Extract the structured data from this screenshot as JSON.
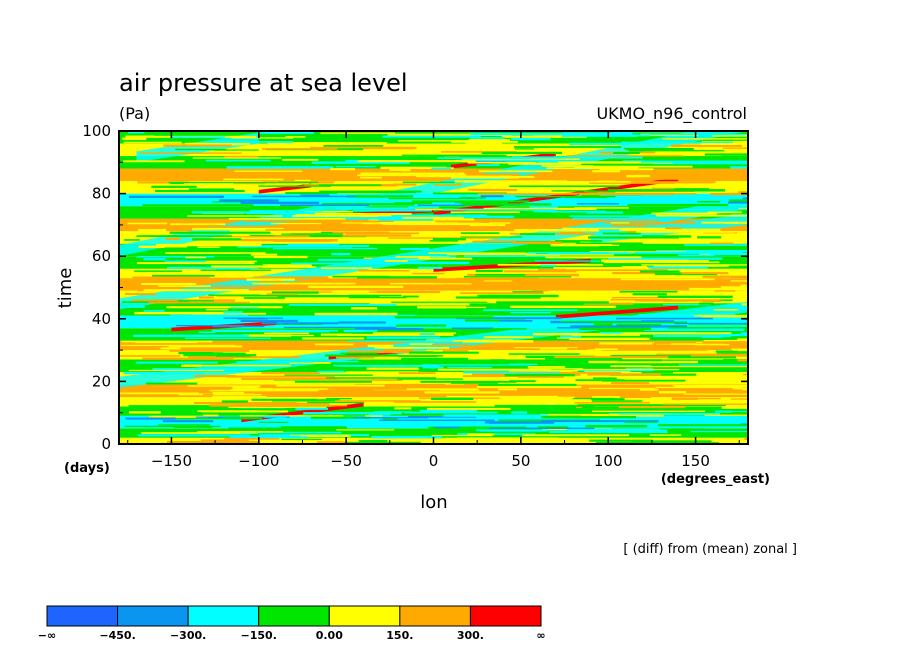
{
  "chart_data": {
    "type": "heatmap",
    "title": "air pressure at sea level",
    "units": "(Pa)",
    "model_label": "UKMO_n96_control",
    "xlabel": "lon",
    "xunits": "(degrees_east)",
    "ylabel": "time",
    "yunits": "(days)",
    "xlim": [
      -180,
      180
    ],
    "ylim": [
      0,
      100
    ],
    "xticks": [
      -150,
      -100,
      -50,
      0,
      50,
      100,
      150
    ],
    "xtick_labels": [
      "−150",
      "−100",
      "−50",
      "0",
      "50",
      "100",
      "150"
    ],
    "yticks": [
      0,
      20,
      40,
      60,
      80,
      100
    ],
    "ytick_labels": [
      "0",
      "20",
      "40",
      "60",
      "80",
      "100"
    ],
    "annotation": "[ (diff) from (mean) zonal ]",
    "color_levels": [
      {
        "range": "-∞ to -450",
        "color": "#1e64ff"
      },
      {
        "range": "-450 to -300",
        "color": "#0a96f0"
      },
      {
        "range": "-300 to -150",
        "color": "#00ffff"
      },
      {
        "range": "-150 to 0",
        "color": "#00e600"
      },
      {
        "range": "0 to 150",
        "color": "#ffff00"
      },
      {
        "range": "150 to 300",
        "color": "#ffaa00"
      },
      {
        "range": "300 to ∞",
        "color": "#ff0000"
      }
    ],
    "colorbar_labels": [
      "−∞",
      "−450.",
      "−300.",
      "−150.",
      "0.00",
      "150.",
      "300.",
      "∞"
    ],
    "bands": [
      {
        "t0": 0,
        "t1": 2,
        "level": 4
      },
      {
        "t0": 2,
        "t1": 5,
        "level": 3
      },
      {
        "t0": 5,
        "t1": 9,
        "level": 2
      },
      {
        "t0": 9,
        "t1": 12,
        "level": 3
      },
      {
        "t0": 12,
        "t1": 15,
        "level": 4
      },
      {
        "t0": 15,
        "t1": 19,
        "level": 5
      },
      {
        "t0": 19,
        "t1": 23,
        "level": 4
      },
      {
        "t0": 23,
        "t1": 27,
        "level": 3
      },
      {
        "t0": 27,
        "t1": 30,
        "level": 4
      },
      {
        "t0": 30,
        "t1": 33,
        "level": 5
      },
      {
        "t0": 33,
        "t1": 37,
        "level": 3
      },
      {
        "t0": 37,
        "t1": 41,
        "level": 2
      },
      {
        "t0": 41,
        "t1": 45,
        "level": 3
      },
      {
        "t0": 45,
        "t1": 49,
        "level": 4
      },
      {
        "t0": 49,
        "t1": 53,
        "level": 5
      },
      {
        "t0": 53,
        "t1": 56,
        "level": 4
      },
      {
        "t0": 56,
        "t1": 60,
        "level": 3
      },
      {
        "t0": 60,
        "t1": 64,
        "level": 3
      },
      {
        "t0": 64,
        "t1": 68,
        "level": 4
      },
      {
        "t0": 68,
        "t1": 72,
        "level": 5
      },
      {
        "t0": 72,
        "t1": 76,
        "level": 3
      },
      {
        "t0": 76,
        "t1": 80,
        "level": 2
      },
      {
        "t0": 80,
        "t1": 84,
        "level": 4
      },
      {
        "t0": 84,
        "t1": 88,
        "level": 5
      },
      {
        "t0": 88,
        "t1": 92,
        "level": 3
      },
      {
        "t0": 92,
        "t1": 96,
        "level": 4
      },
      {
        "t0": 96,
        "t1": 100,
        "level": 3
      }
    ],
    "tilted_features": [
      {
        "lon0": -180,
        "t0": 18,
        "lon1": 180,
        "t1": 42,
        "level": 2
      },
      {
        "lon0": -180,
        "t0": 43,
        "lon1": 180,
        "t1": 75,
        "level": 2
      },
      {
        "lon0": -180,
        "t0": 60,
        "lon1": 180,
        "t1": 100,
        "level": 2
      },
      {
        "lon0": -110,
        "t0": 7,
        "lon1": -40,
        "t1": 12,
        "level": 6
      },
      {
        "lon0": -150,
        "t0": 36,
        "lon1": -90,
        "t1": 38,
        "level": 6
      },
      {
        "lon0": -60,
        "t0": 27,
        "lon1": -20,
        "t1": 29,
        "level": 6
      },
      {
        "lon0": 0,
        "t0": 55,
        "lon1": 90,
        "t1": 58,
        "level": 6
      },
      {
        "lon0": -100,
        "t0": 80,
        "lon1": -70,
        "t1": 82,
        "level": 6
      },
      {
        "lon0": -70,
        "t0": 72,
        "lon1": 0,
        "t1": 74,
        "level": 6
      },
      {
        "lon0": 0,
        "t0": 73,
        "lon1": 140,
        "t1": 84,
        "level": 6
      },
      {
        "lon0": 10,
        "t0": 88,
        "lon1": 70,
        "t1": 92,
        "level": 6
      },
      {
        "lon0": 70,
        "t0": 40,
        "lon1": 140,
        "t1": 43,
        "level": 6
      },
      {
        "lon0": -170,
        "t0": 90,
        "lon1": -100,
        "t1": 96,
        "level": 2
      },
      {
        "lon0": 90,
        "t0": 64,
        "lon1": 180,
        "t1": 70,
        "level": 2
      }
    ]
  }
}
